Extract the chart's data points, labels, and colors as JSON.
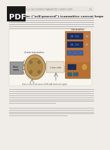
{
  "page_bg": "#f0ede8",
  "white_bg": "#ffffff",
  "pdf_box_color": "#1a1a1a",
  "pdf_text": "PDF",
  "header_text": "13.4  SELF-POWERED TRANSMITTER CURRENT LOOPS",
  "page_num": "471",
  "title_text": "13.4   4-wire (“self-powered”) transmitter current loops",
  "controller_label": "Controller",
  "pv_label": "PV",
  "sp_label": "SP",
  "transmitter_label": "4-wire transmitter",
  "power_label": "Power\nsupply",
  "cable_label": "2-wire cable",
  "note1": "4-wire electrical source",
  "note2": "4-20 mA electrical signal",
  "controller_body_color": "#d4915a",
  "controller_top_color": "#c07840",
  "display_bg": "#1a2e5a",
  "display_text_color": "#6688dd",
  "button_color": "#4466aa",
  "button_color2": "#336688",
  "controller_lower_color": "#b87030",
  "knob_color": "#cc9944",
  "transmitter_outer_color": "#c8a060",
  "transmitter_inner_color": "#b08848",
  "terminal_color": "#887744",
  "power_supply_color": "#999999",
  "power_supply_border": "#555555",
  "wire_color": "#333333",
  "text_line_color": "#aaaaaa",
  "title_color": "#222222",
  "label_color": "#444444",
  "diagram_bg": "#f8f5f0",
  "body_line_widths": [
    145,
    145,
    145,
    145,
    145,
    130
  ],
  "bottom_line_widths": [
    145,
    145,
    145,
    145,
    145,
    145,
    145,
    80
  ],
  "bottom2_line_widths": [
    145,
    145,
    145,
    145,
    100
  ]
}
